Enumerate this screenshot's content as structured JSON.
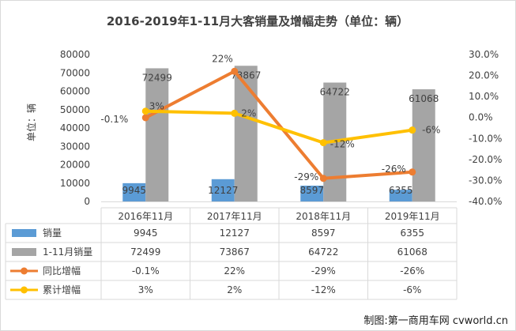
{
  "chart_data": {
    "type": "bar",
    "title": "2016-2019年1-11月大客销量及增幅走势（单位：辆）",
    "ylabel": "单位：辆",
    "categories": [
      "2016年11月",
      "2017年11月",
      "2018年11月",
      "2019年11月"
    ],
    "ylim": [
      0,
      80000
    ],
    "yticks": [
      "0",
      "10000",
      "20000",
      "30000",
      "40000",
      "50000",
      "60000",
      "70000",
      "80000"
    ],
    "y2lim": [
      -40,
      30
    ],
    "y2ticks": [
      "30.0%",
      "20.0%",
      "10.0%",
      "0.0%",
      "-10.0%",
      "-20.0%",
      "-30.0%",
      "-40.0%"
    ],
    "grid": false,
    "legend": "table-bottom",
    "series": [
      {
        "name": "销量",
        "kind": "bar",
        "axis": "left",
        "color": "#5B9BD5",
        "values": [
          9945,
          12127,
          8597,
          6355
        ],
        "labels": [
          "9945",
          "12127",
          "8597",
          "6355"
        ]
      },
      {
        "name": "1-11月销量",
        "kind": "bar",
        "axis": "left",
        "color": "#A5A5A5",
        "values": [
          72499,
          73867,
          64722,
          61068
        ],
        "labels": [
          "72499",
          "73867",
          "64722",
          "61068"
        ]
      },
      {
        "name": "同比增幅",
        "kind": "line",
        "axis": "right",
        "color": "#ED7D31",
        "values": [
          -0.1,
          22,
          -29,
          -26
        ],
        "labels": [
          "-0.1%",
          "22%",
          "-29%",
          "-26%"
        ]
      },
      {
        "name": "累计增幅",
        "kind": "line",
        "axis": "right",
        "color": "#FFC000",
        "values": [
          3,
          2,
          -12,
          -6
        ],
        "labels": [
          "3%",
          "2%",
          "-12%",
          "-6%"
        ]
      }
    ]
  },
  "source_note": "制图:第一商用车网 cvworld.cn"
}
